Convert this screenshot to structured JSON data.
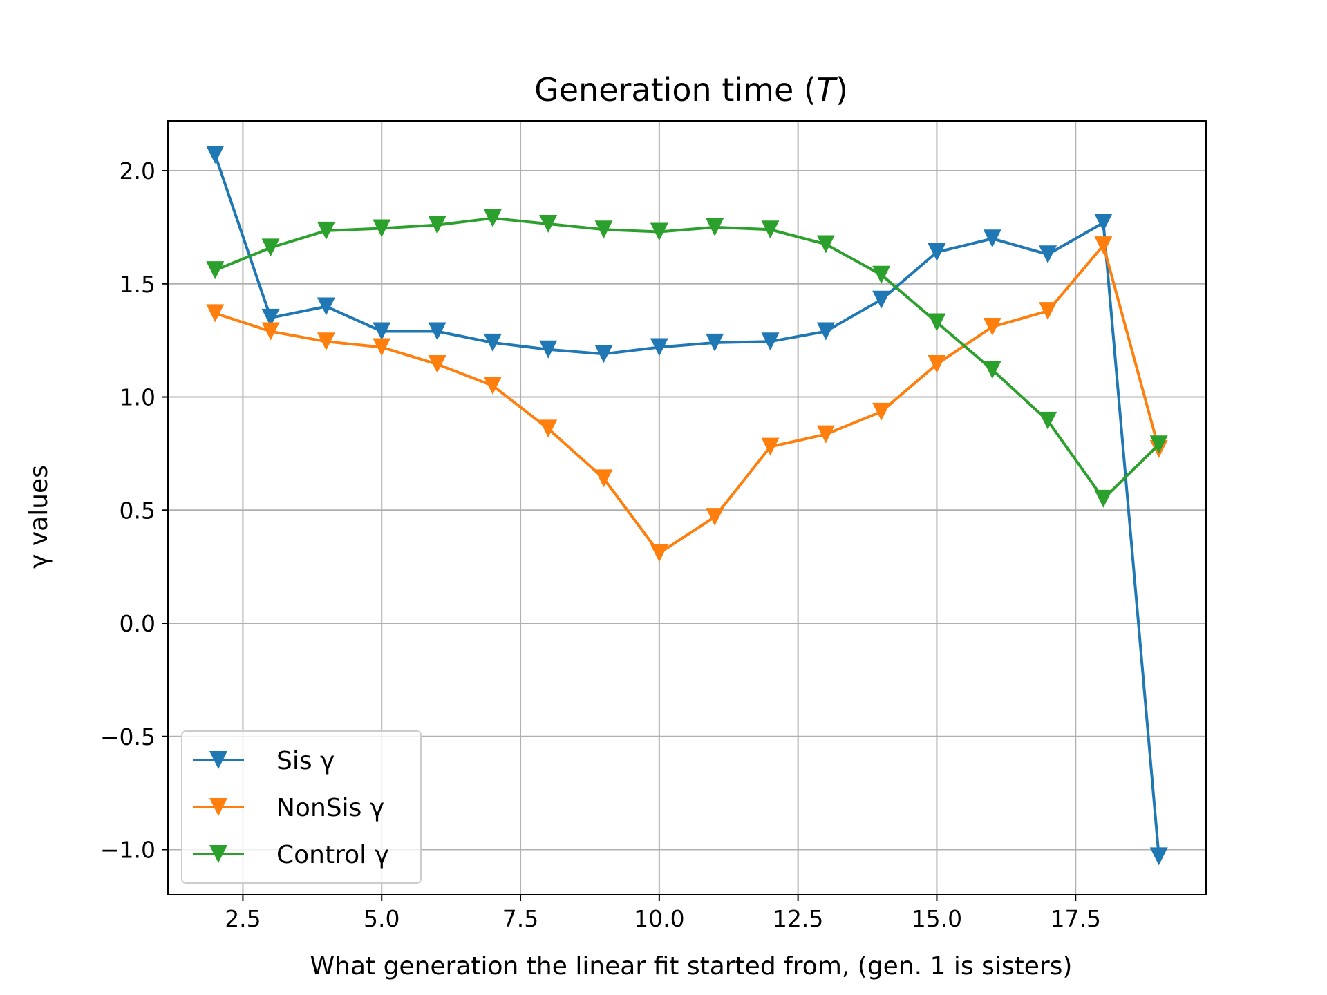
{
  "chart_data": {
    "type": "line",
    "title": "Generation time (T)",
    "xlabel": "What generation the linear fit started from, (gen. 1 is sisters)",
    "ylabel": "γ values",
    "xlim": [
      1.15,
      19.85
    ],
    "ylim": [
      -1.2,
      2.22
    ],
    "xticks": [
      2.5,
      5.0,
      7.5,
      10.0,
      12.5,
      15.0,
      17.5
    ],
    "xtick_labels": [
      "2.5",
      "5.0",
      "7.5",
      "10.0",
      "12.5",
      "15.0",
      "17.5"
    ],
    "yticks": [
      -1.0,
      -0.5,
      0.0,
      0.5,
      1.0,
      1.5,
      2.0
    ],
    "ytick_labels": [
      "−1.0",
      "−0.5",
      "0.0",
      "0.5",
      "1.0",
      "1.5",
      "2.0"
    ],
    "grid": true,
    "legend_position": "lower-left",
    "marker": "triangle-down",
    "x": [
      2,
      3,
      4,
      5,
      6,
      7,
      8,
      9,
      10,
      11,
      12,
      13,
      14,
      15,
      16,
      17,
      18,
      19
    ],
    "series": [
      {
        "name": "Sis γ",
        "color": "#1f77b4",
        "values": [
          2.07,
          1.35,
          1.4,
          1.29,
          1.29,
          1.24,
          1.21,
          1.19,
          1.22,
          1.24,
          1.245,
          1.29,
          1.43,
          1.64,
          1.7,
          1.63,
          1.77,
          -1.03
        ]
      },
      {
        "name": "NonSis γ",
        "color": "#ff7f0e",
        "values": [
          1.37,
          1.29,
          1.245,
          1.22,
          1.145,
          1.05,
          0.86,
          0.64,
          0.31,
          0.47,
          0.78,
          0.835,
          0.935,
          1.145,
          1.31,
          1.38,
          1.67,
          0.77
        ]
      },
      {
        "name": "Control γ",
        "color": "#2ca02c",
        "values": [
          1.56,
          1.66,
          1.735,
          1.745,
          1.76,
          1.79,
          1.765,
          1.74,
          1.73,
          1.75,
          1.74,
          1.675,
          1.54,
          1.33,
          1.12,
          0.895,
          0.55,
          0.79
        ]
      }
    ]
  }
}
